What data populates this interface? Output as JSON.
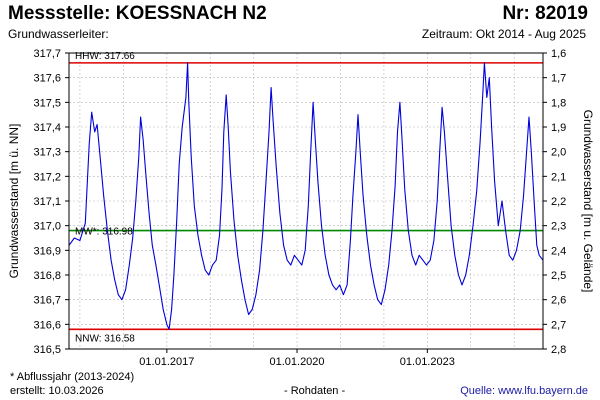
{
  "header": {
    "title": "Messstelle: KOESSNACH N2",
    "number": "Nr: 82019",
    "aquifer_label": "Grundwasserleiter:",
    "period": "Zeitraum: Okt 2014 - Aug 2025"
  },
  "footer": {
    "note": "* Abflussjahr (2013-2024)",
    "created": "erstellt:  10.03.2026",
    "raw": "- Rohdaten -",
    "source": "Quelle:  www.lfu.bayern.de"
  },
  "colors": {
    "line": "#0000dd",
    "hhw": "#dd0000",
    "nnw": "#dd0000",
    "mw": "#008800",
    "grid": "#b8b8b8"
  },
  "chart_data": {
    "type": "line",
    "ylabel": "Grundwasserstand [m ü. NN]",
    "y2label": "Grundwasserstand [m u. Gelände]",
    "ylim": [
      316.5,
      317.7
    ],
    "y2lim": [
      2.8,
      1.6
    ],
    "y_ticks": [
      "316,5",
      "316,6",
      "316,7",
      "316,8",
      "316,9",
      "317,0",
      "317,1",
      "317,2",
      "317,3",
      "317,4",
      "317,5",
      "317,6",
      "317,7"
    ],
    "y2_ticks": [
      "2,8",
      "2,7",
      "2,6",
      "2,5",
      "2,4",
      "2,3",
      "2,2",
      "2,1",
      "2,0",
      "1,9",
      "1,8",
      "1,7",
      "1,6"
    ],
    "x_range": [
      "2014-10-01",
      "2025-08-31"
    ],
    "x_ticks": [
      {
        "date": "2017-01-01",
        "label": "01.01.2017"
      },
      {
        "date": "2020-01-01",
        "label": "01.01.2020"
      },
      {
        "date": "2023-01-01",
        "label": "01.01.2023"
      }
    ],
    "grid": true,
    "reference_lines": [
      {
        "label": "HHW: 317.66",
        "value": 317.66,
        "color": "#dd0000"
      },
      {
        "label": "MW*: 316.98",
        "value": 316.98,
        "color": "#008800"
      },
      {
        "label": "NNW: 316.58",
        "value": 316.58,
        "color": "#dd0000"
      }
    ],
    "series": [
      {
        "points": [
          [
            "2014-10-01",
            316.92
          ],
          [
            "2014-11-15",
            316.95
          ],
          [
            "2015-01-01",
            316.94
          ],
          [
            "2015-02-15",
            317.01
          ],
          [
            "2015-03-20",
            317.33
          ],
          [
            "2015-04-10",
            317.46
          ],
          [
            "2015-05-05",
            317.38
          ],
          [
            "2015-05-25",
            317.41
          ],
          [
            "2015-06-20",
            317.28
          ],
          [
            "2015-07-20",
            317.12
          ],
          [
            "2015-08-20",
            316.98
          ],
          [
            "2015-09-20",
            316.86
          ],
          [
            "2015-10-20",
            316.78
          ],
          [
            "2015-11-20",
            316.72
          ],
          [
            "2015-12-20",
            316.7
          ],
          [
            "2016-01-20",
            316.74
          ],
          [
            "2016-02-20",
            316.84
          ],
          [
            "2016-03-20",
            316.95
          ],
          [
            "2016-04-15",
            317.1
          ],
          [
            "2016-05-10",
            317.28
          ],
          [
            "2016-05-25",
            317.44
          ],
          [
            "2016-06-15",
            317.35
          ],
          [
            "2016-07-10",
            317.2
          ],
          [
            "2016-08-05",
            317.05
          ],
          [
            "2016-09-01",
            316.92
          ],
          [
            "2016-10-01",
            316.84
          ],
          [
            "2016-11-01",
            316.75
          ],
          [
            "2016-12-01",
            316.66
          ],
          [
            "2017-01-01",
            316.6
          ],
          [
            "2017-01-20",
            316.58
          ],
          [
            "2017-02-10",
            316.66
          ],
          [
            "2017-03-01",
            316.8
          ],
          [
            "2017-03-25",
            317.02
          ],
          [
            "2017-04-15",
            317.25
          ],
          [
            "2017-05-10",
            317.4
          ],
          [
            "2017-06-10",
            317.52
          ],
          [
            "2017-06-25",
            317.66
          ],
          [
            "2017-07-05",
            317.5
          ],
          [
            "2017-07-25",
            317.28
          ],
          [
            "2017-08-20",
            317.08
          ],
          [
            "2017-09-20",
            316.96
          ],
          [
            "2017-10-20",
            316.88
          ],
          [
            "2017-11-20",
            316.82
          ],
          [
            "2017-12-20",
            316.8
          ],
          [
            "2018-01-20",
            316.84
          ],
          [
            "2018-02-20",
            316.86
          ],
          [
            "2018-03-20",
            316.96
          ],
          [
            "2018-04-10",
            317.15
          ],
          [
            "2018-04-25",
            317.38
          ],
          [
            "2018-05-15",
            317.53
          ],
          [
            "2018-06-01",
            317.4
          ],
          [
            "2018-06-20",
            317.22
          ],
          [
            "2018-07-20",
            317.02
          ],
          [
            "2018-08-20",
            316.88
          ],
          [
            "2018-09-20",
            316.78
          ],
          [
            "2018-10-20",
            316.7
          ],
          [
            "2018-11-20",
            316.64
          ],
          [
            "2018-12-20",
            316.66
          ],
          [
            "2019-01-20",
            316.72
          ],
          [
            "2019-02-20",
            316.82
          ],
          [
            "2019-03-20",
            316.98
          ],
          [
            "2019-04-15",
            317.18
          ],
          [
            "2019-05-10",
            317.38
          ],
          [
            "2019-05-28",
            317.56
          ],
          [
            "2019-06-15",
            317.42
          ],
          [
            "2019-07-10",
            317.24
          ],
          [
            "2019-08-10",
            317.05
          ],
          [
            "2019-09-10",
            316.92
          ],
          [
            "2019-10-10",
            316.86
          ],
          [
            "2019-11-10",
            316.84
          ],
          [
            "2019-12-10",
            316.88
          ],
          [
            "2020-01-10",
            316.86
          ],
          [
            "2020-02-10",
            316.84
          ],
          [
            "2020-03-10",
            316.9
          ],
          [
            "2020-04-05",
            317.08
          ],
          [
            "2020-04-25",
            317.3
          ],
          [
            "2020-05-15",
            317.5
          ],
          [
            "2020-06-01",
            317.36
          ],
          [
            "2020-06-25",
            317.18
          ],
          [
            "2020-07-25",
            317.0
          ],
          [
            "2020-08-25",
            316.88
          ],
          [
            "2020-09-25",
            316.8
          ],
          [
            "2020-10-25",
            316.76
          ],
          [
            "2020-11-25",
            316.74
          ],
          [
            "2020-12-25",
            316.76
          ],
          [
            "2021-01-25",
            316.72
          ],
          [
            "2021-02-25",
            316.76
          ],
          [
            "2021-03-25",
            316.94
          ],
          [
            "2021-04-15",
            317.12
          ],
          [
            "2021-05-10",
            317.3
          ],
          [
            "2021-05-28",
            317.45
          ],
          [
            "2021-06-15",
            317.3
          ],
          [
            "2021-07-10",
            317.12
          ],
          [
            "2021-08-10",
            316.96
          ],
          [
            "2021-09-10",
            316.84
          ],
          [
            "2021-10-10",
            316.76
          ],
          [
            "2021-11-10",
            316.7
          ],
          [
            "2021-12-10",
            316.68
          ],
          [
            "2022-01-10",
            316.74
          ],
          [
            "2022-02-10",
            316.84
          ],
          [
            "2022-03-10",
            316.98
          ],
          [
            "2022-04-05",
            317.16
          ],
          [
            "2022-04-25",
            317.38
          ],
          [
            "2022-05-15",
            317.5
          ],
          [
            "2022-06-01",
            317.36
          ],
          [
            "2022-06-25",
            317.15
          ],
          [
            "2022-07-25",
            316.98
          ],
          [
            "2022-08-25",
            316.88
          ],
          [
            "2022-09-25",
            316.84
          ],
          [
            "2022-10-25",
            316.88
          ],
          [
            "2022-11-25",
            316.86
          ],
          [
            "2022-12-25",
            316.84
          ],
          [
            "2023-01-25",
            316.86
          ],
          [
            "2023-02-25",
            316.94
          ],
          [
            "2023-03-25",
            317.1
          ],
          [
            "2023-04-15",
            317.3
          ],
          [
            "2023-05-05",
            317.48
          ],
          [
            "2023-05-25",
            317.38
          ],
          [
            "2023-06-20",
            317.2
          ],
          [
            "2023-07-20",
            317.0
          ],
          [
            "2023-08-20",
            316.88
          ],
          [
            "2023-09-20",
            316.8
          ],
          [
            "2023-10-20",
            316.76
          ],
          [
            "2023-11-20",
            316.8
          ],
          [
            "2023-12-20",
            316.88
          ],
          [
            "2024-01-20",
            317.0
          ],
          [
            "2024-02-20",
            317.14
          ],
          [
            "2024-03-20",
            317.34
          ],
          [
            "2024-04-10",
            317.52
          ],
          [
            "2024-04-25",
            317.66
          ],
          [
            "2024-05-15",
            317.52
          ],
          [
            "2024-06-05",
            317.6
          ],
          [
            "2024-06-25",
            317.4
          ],
          [
            "2024-07-20",
            317.18
          ],
          [
            "2024-08-20",
            317.0
          ],
          [
            "2024-09-20",
            317.1
          ],
          [
            "2024-10-20",
            316.98
          ],
          [
            "2024-11-20",
            316.88
          ],
          [
            "2024-12-20",
            316.86
          ],
          [
            "2025-01-20",
            316.9
          ],
          [
            "2025-02-20",
            316.98
          ],
          [
            "2025-03-20",
            317.12
          ],
          [
            "2025-04-15",
            317.3
          ],
          [
            "2025-05-05",
            317.44
          ],
          [
            "2025-05-25",
            317.3
          ],
          [
            "2025-06-20",
            317.08
          ],
          [
            "2025-07-10",
            316.92
          ],
          [
            "2025-07-30",
            316.88
          ],
          [
            "2025-08-31",
            316.86
          ]
        ]
      }
    ]
  }
}
